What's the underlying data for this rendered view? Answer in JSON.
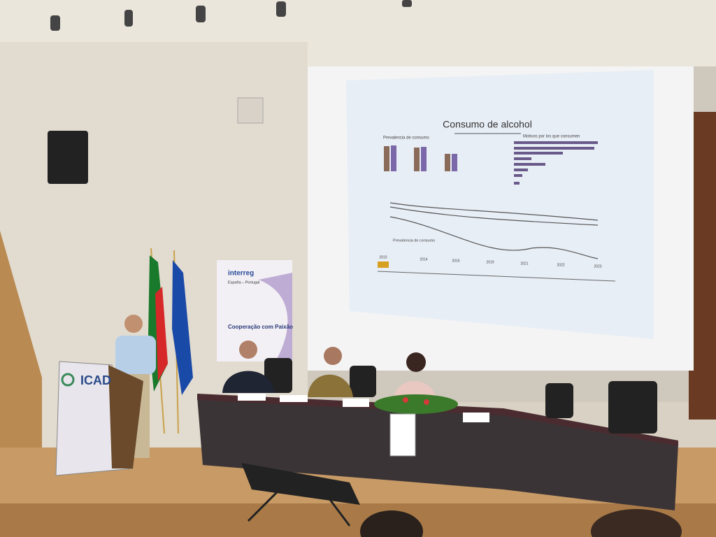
{
  "slide": {
    "title": "Consumo de alcohol",
    "left_heading": "Prevalencia de consumo",
    "right_heading": "Motivos por los que consumen",
    "bottom_heading": "Prevalencia de consumo",
    "years": [
      "2010",
      "2014",
      "2016",
      "2019",
      "2021",
      "2022",
      "2023"
    ]
  },
  "banner": {
    "brand": "interreg",
    "region": "España – Portugal",
    "motto": "Cooperação com Paixão"
  },
  "podium": {
    "logo": "ICAD"
  }
}
